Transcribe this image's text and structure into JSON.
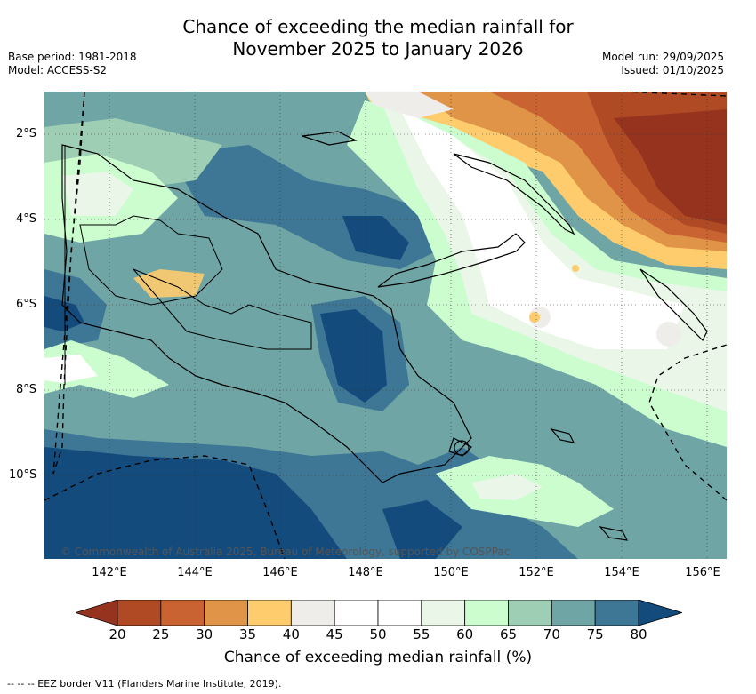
{
  "title": {
    "line1": "Chance of exceeding the median rainfall for",
    "line2": "November 2025 to January 2026"
  },
  "meta_left": {
    "base_period": "Base period: 1981-2018",
    "model": "Model: ACCESS-S2"
  },
  "meta_right": {
    "model_run": "Model run: 29/09/2025",
    "issued": "Issued: 01/10/2025"
  },
  "copyright": "© Commonwealth of Australia 2025, Bureau of Meteorology, supported by COSPPac",
  "latitude_labels": [
    "2°S",
    "4°S",
    "6°S",
    "8°S",
    "10°S"
  ],
  "longitude_labels": [
    "142°E",
    "144°E",
    "146°E",
    "148°E",
    "150°E",
    "152°E",
    "154°E",
    "156°E"
  ],
  "colorbar": {
    "ticks": [
      "20",
      "25",
      "30",
      "35",
      "40",
      "45",
      "50",
      "55",
      "60",
      "65",
      "70",
      "75",
      "80"
    ],
    "colors": [
      "#b04a24",
      "#c96331",
      "#e09447",
      "#fecb6d",
      "#efede9",
      "#ffffff",
      "#ffffff",
      "#eaf6e7",
      "#cbfdcf",
      "#9ecfb4",
      "#6fa5a5",
      "#3d7795"
    ],
    "under_color": "#96331f",
    "over_color": "#134b7d",
    "label": "Chance of exceeding median rainfall (%)"
  },
  "legend_note": "--  --  -- EEZ border V11 (Flanders Marine Institute, 2019)."
}
